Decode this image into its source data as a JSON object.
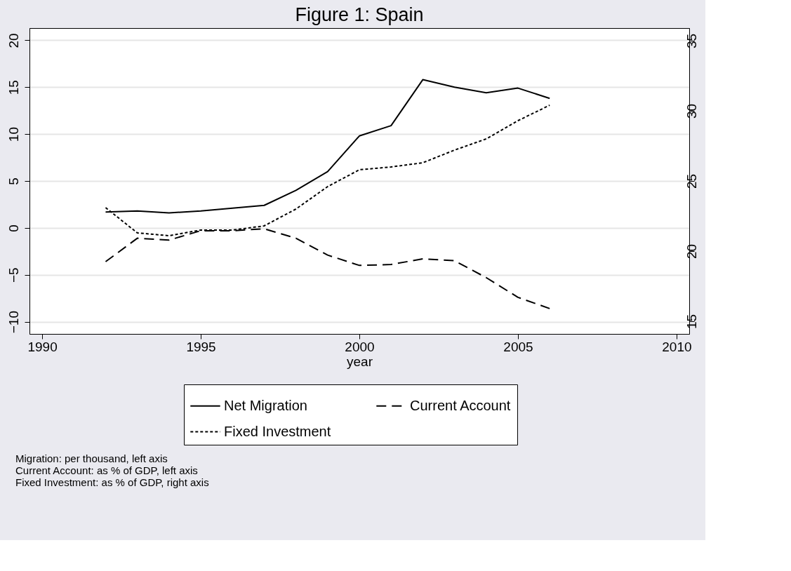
{
  "chart_data": {
    "type": "line",
    "title": "Figure 1: Spain",
    "xlabel": "year",
    "x": [
      1992,
      1993,
      1994,
      1995,
      1996,
      1997,
      1998,
      1999,
      2000,
      2001,
      2002,
      2003,
      2004,
      2005,
      2006
    ],
    "series": [
      {
        "name": "Net Migration",
        "color": "#000000",
        "line_style": "solid",
        "values": [
          1.7,
          1.8,
          1.6,
          1.8,
          2.1,
          2.4,
          4.0,
          6.0,
          9.8,
          10.9,
          15.8,
          15.0,
          14.4,
          14.9,
          13.8
        ]
      },
      {
        "name": "Current Account",
        "color": "#000000",
        "line_style": "dashed",
        "values": [
          -3.6,
          -1.1,
          -1.3,
          -0.3,
          -0.3,
          -0.1,
          -1.1,
          -2.9,
          -4.0,
          -3.9,
          -3.3,
          -3.5,
          -5.3,
          -7.4,
          -8.6
        ]
      },
      {
        "name": "Fixed Investment",
        "color": "#000000",
        "line_style": "dotted",
        "axis": "y2",
        "values": [
          23.1,
          21.3,
          21.1,
          21.5,
          21.5,
          21.8,
          23.0,
          24.6,
          25.8,
          26.0,
          26.3,
          27.2,
          28.0,
          29.3,
          30.4
        ]
      }
    ],
    "xlim": [
      1989.6,
      2010.4
    ],
    "xticks": [
      1990,
      1995,
      2000,
      2005,
      2010
    ],
    "ylim": [
      -11.3,
      21.3
    ],
    "yticks": [
      -10,
      -5,
      0,
      5,
      10,
      15,
      20
    ],
    "y2lim": [
      14.1,
      35.9
    ],
    "y2ticks": [
      15,
      20,
      25,
      30,
      35
    ],
    "grid": "y",
    "legend": "bottom",
    "marker": "none",
    "annotations": [
      "Migration: per thousand, left axis",
      "Current Account: as % of GDP, left axis",
      "Fixed Investment: as % of GDP, right axis"
    ]
  }
}
